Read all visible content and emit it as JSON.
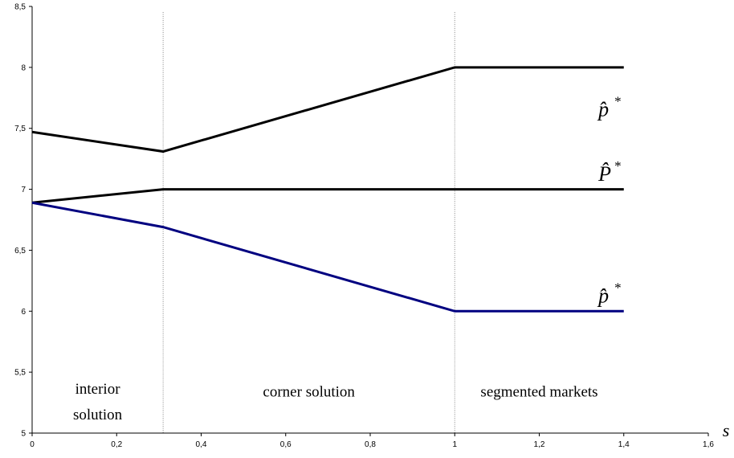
{
  "chart_data": {
    "type": "line",
    "xlabel": "s",
    "ylabel": "",
    "title": "",
    "xlim": [
      0,
      1.6
    ],
    "ylim": [
      5,
      8.5
    ],
    "xticks": [
      0,
      0.2,
      0.4,
      0.6,
      0.8,
      1,
      1.2,
      1.4,
      1.6
    ],
    "xtick_labels": [
      "0",
      "0,2",
      "0,4",
      "0,6",
      "0,8",
      "1",
      "1,2",
      "1,4",
      "1,6"
    ],
    "yticks": [
      5,
      5.5,
      6,
      6.5,
      7,
      7.5,
      8,
      8.5
    ],
    "ytick_labels": [
      "5",
      "5,5",
      "6",
      "6,5",
      "7",
      "7,5",
      "8",
      "8,5"
    ],
    "grid": false,
    "vlines": [
      0.31,
      1.0
    ],
    "regions": [
      {
        "line1": "interior",
        "line2": "solution",
        "x": 0.155,
        "y": 5.34
      },
      {
        "line1": "corner solution",
        "line2": "",
        "x": 0.655,
        "y": 5.34
      },
      {
        "line1": "segmented markets",
        "line2": "",
        "x": 1.2,
        "y": 5.34
      }
    ],
    "series": [
      {
        "label_base": "p̂",
        "label_sup": "*",
        "label_sub": "",
        "color": "#000000",
        "x": [
          0,
          0.31,
          1.0,
          1.4
        ],
        "y": [
          7.47,
          7.31,
          8.0,
          8.0
        ],
        "label_x": 1.34,
        "label_y": 7.6
      },
      {
        "label_base": "P̂",
        "label_sup": "*",
        "label_sub": "",
        "color": "#000000",
        "x": [
          0,
          0.31,
          1.0,
          1.4
        ],
        "y": [
          6.89,
          7.0,
          7.0,
          7.0
        ],
        "label_x": 1.34,
        "label_y": 7.07
      },
      {
        "label_base": "p̂",
        "label_sup": "*",
        "label_sub": "",
        "color": "#000080",
        "x": [
          0,
          0.31,
          1.0,
          1.4
        ],
        "y": [
          6.89,
          6.69,
          6.0,
          6.0
        ],
        "label_x": 1.34,
        "label_y": 6.07
      }
    ]
  }
}
